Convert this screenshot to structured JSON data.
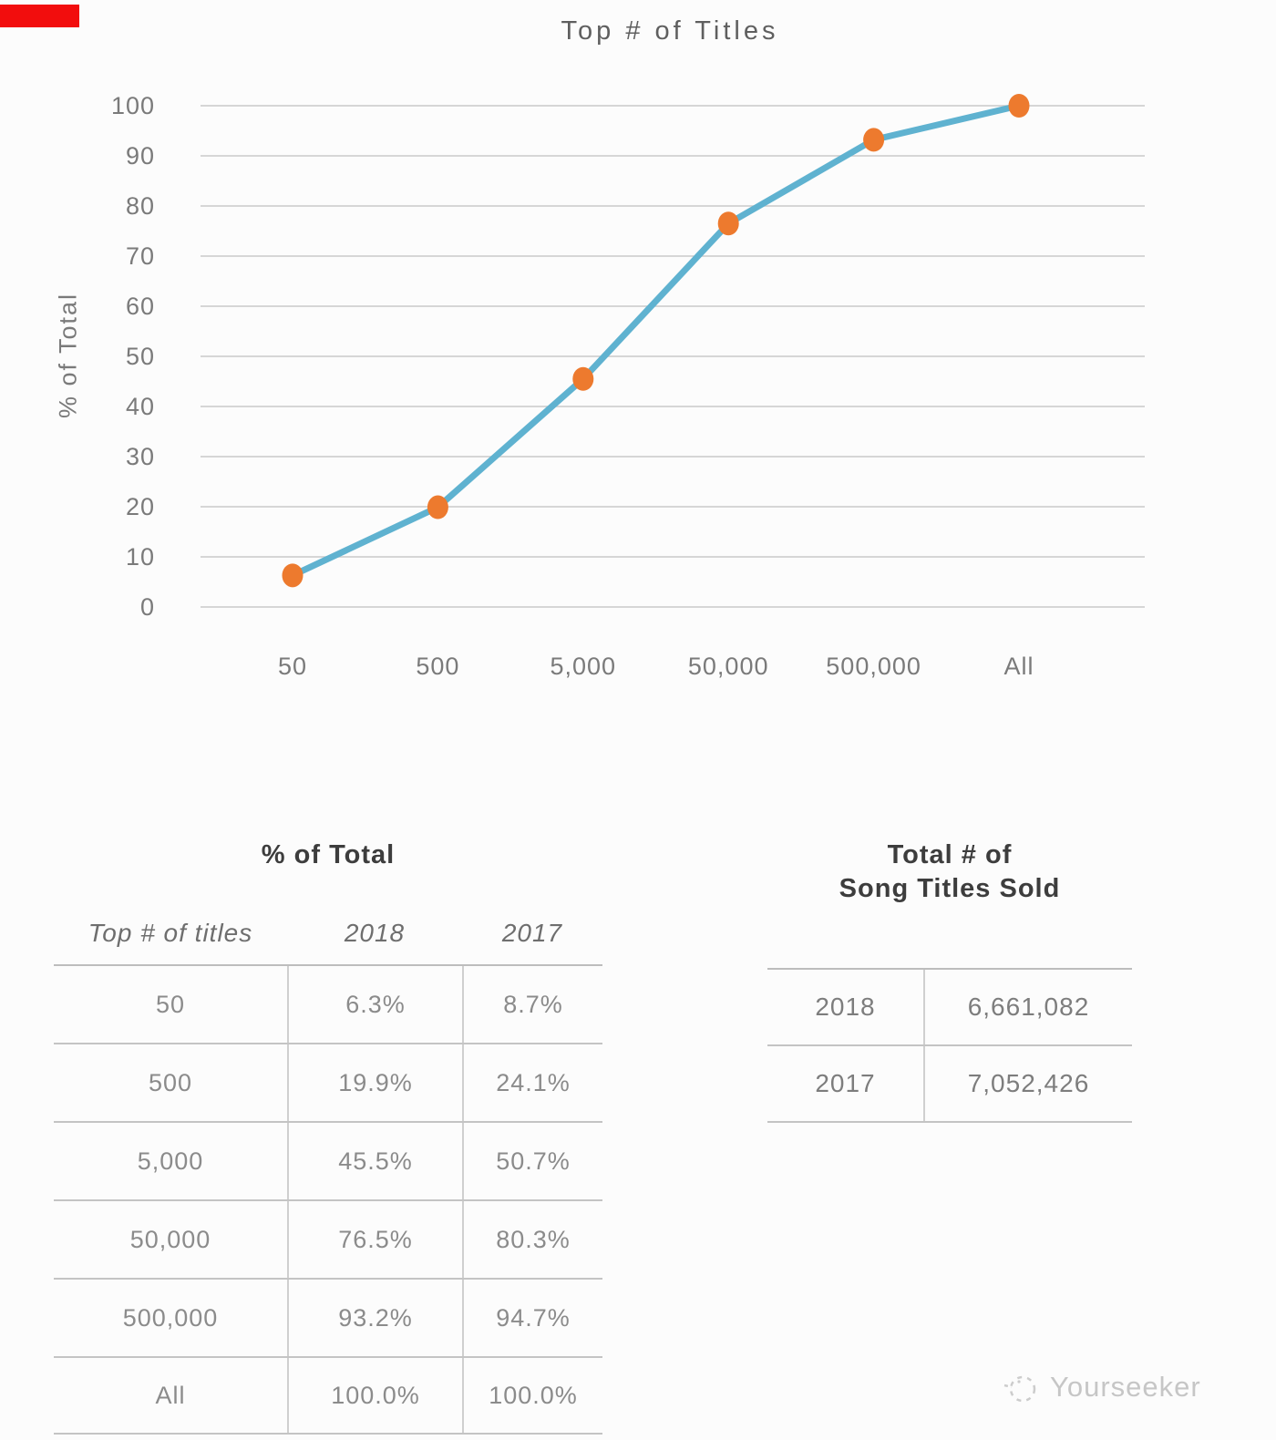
{
  "badge": {
    "color": "#f20d0d"
  },
  "chart_data": {
    "type": "line",
    "title": "Top # of Titles",
    "xlabel": "",
    "ylabel": "% of Total",
    "categories": [
      "50",
      "500",
      "5,000",
      "50,000",
      "500,000",
      "All"
    ],
    "series": [
      {
        "name": "2018",
        "values": [
          6.3,
          19.9,
          45.5,
          76.5,
          93.2,
          100.0
        ]
      }
    ],
    "yticks": [
      0,
      10,
      20,
      30,
      40,
      50,
      60,
      70,
      80,
      90,
      100
    ],
    "ylim": [
      0,
      100
    ],
    "grid": true,
    "legend": false,
    "line_color": "#5fb2d0",
    "marker_color": "#ed7a2e",
    "grid_color": "#c9c9c9",
    "tick_color": "#7a7a7a"
  },
  "tables": {
    "pct": {
      "title": "% of Total",
      "headers": [
        "Top # of titles",
        "2018",
        "2017"
      ],
      "rows": [
        [
          "50",
          "6.3%",
          "8.7%"
        ],
        [
          "500",
          "19.9%",
          "24.1%"
        ],
        [
          "5,000",
          "45.5%",
          "50.7%"
        ],
        [
          "50,000",
          "76.5%",
          "80.3%"
        ],
        [
          "500,000",
          "93.2%",
          "94.7%"
        ],
        [
          "All",
          "100.0%",
          "100.0%"
        ]
      ]
    },
    "totals": {
      "title_line1": "Total # of",
      "title_line2": "Song Titles Sold",
      "rows": [
        [
          "2018",
          "6,661,082"
        ],
        [
          "2017",
          "7,052,426"
        ]
      ]
    }
  },
  "watermark": {
    "text": "Yourseeker"
  }
}
